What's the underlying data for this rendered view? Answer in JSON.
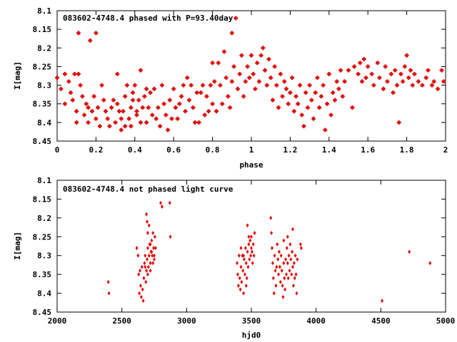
{
  "chart_data": [
    {
      "type": "scatter",
      "title": "083602-4748.4 phased with P=93.40day",
      "xlabel": "phase",
      "ylabel": "I[mag]",
      "xlim": [
        0,
        2
      ],
      "ylim": [
        8.1,
        8.45
      ],
      "y_inverted": true,
      "grid": false,
      "xticks": [
        "0",
        "0.2",
        "0.4",
        "0.6",
        "0.8",
        "1",
        "1.2",
        "1.4",
        "1.6",
        "1.8",
        "2"
      ],
      "yticks": [
        "8.1",
        "8.15",
        "8.2",
        "8.25",
        "8.3",
        "8.35",
        "8.4",
        "8.45"
      ],
      "color": "#e01010",
      "marker": "star",
      "points": [
        [
          0.0,
          8.28
        ],
        [
          0.02,
          8.31
        ],
        [
          0.04,
          8.35
        ],
        [
          0.04,
          8.27
        ],
        [
          0.06,
          8.29
        ],
        [
          0.07,
          8.32
        ],
        [
          0.08,
          8.34
        ],
        [
          0.09,
          8.27
        ],
        [
          0.1,
          8.37
        ],
        [
          0.1,
          8.4
        ],
        [
          0.11,
          8.16
        ],
        [
          0.11,
          8.27
        ],
        [
          0.12,
          8.3
        ],
        [
          0.13,
          8.33
        ],
        [
          0.14,
          8.38
        ],
        [
          0.15,
          8.35
        ],
        [
          0.16,
          8.36
        ],
        [
          0.16,
          8.4
        ],
        [
          0.17,
          8.18
        ],
        [
          0.18,
          8.37
        ],
        [
          0.19,
          8.33
        ],
        [
          0.2,
          8.16
        ],
        [
          0.2,
          8.39
        ],
        [
          0.21,
          8.36
        ],
        [
          0.22,
          8.41
        ],
        [
          0.23,
          8.3
        ],
        [
          0.24,
          8.34
        ],
        [
          0.25,
          8.37
        ],
        [
          0.26,
          8.39
        ],
        [
          0.27,
          8.41
        ],
        [
          0.28,
          8.36
        ],
        [
          0.29,
          8.34
        ],
        [
          0.3,
          8.4
        ],
        [
          0.31,
          8.27
        ],
        [
          0.31,
          8.35
        ],
        [
          0.32,
          8.37
        ],
        [
          0.33,
          8.39
        ],
        [
          0.33,
          8.42
        ],
        [
          0.34,
          8.37
        ],
        [
          0.35,
          8.33
        ],
        [
          0.35,
          8.41
        ],
        [
          0.36,
          8.3
        ],
        [
          0.37,
          8.39
        ],
        [
          0.38,
          8.36
        ],
        [
          0.38,
          8.41
        ],
        [
          0.39,
          8.34
        ],
        [
          0.39,
          8.32
        ],
        [
          0.4,
          8.3
        ],
        [
          0.41,
          8.37
        ],
        [
          0.41,
          8.38
        ],
        [
          0.42,
          8.34
        ],
        [
          0.43,
          8.26
        ],
        [
          0.43,
          8.4
        ],
        [
          0.44,
          8.36
        ],
        [
          0.45,
          8.33
        ],
        [
          0.46,
          8.31
        ],
        [
          0.46,
          8.4
        ],
        [
          0.47,
          8.36
        ],
        [
          0.48,
          8.32
        ],
        [
          0.49,
          8.38
        ],
        [
          0.5,
          8.31
        ],
        [
          0.51,
          8.39
        ],
        [
          0.52,
          8.36
        ],
        [
          0.53,
          8.41
        ],
        [
          0.54,
          8.3
        ],
        [
          0.55,
          8.35
        ],
        [
          0.56,
          8.38
        ],
        [
          0.57,
          8.42
        ],
        [
          0.58,
          8.34
        ],
        [
          0.59,
          8.39
        ],
        [
          0.6,
          8.31
        ],
        [
          0.61,
          8.36
        ],
        [
          0.62,
          8.39
        ],
        [
          0.63,
          8.35
        ],
        [
          0.64,
          8.33
        ],
        [
          0.65,
          8.3
        ],
        [
          0.66,
          8.37
        ],
        [
          0.67,
          8.28
        ],
        [
          0.68,
          8.34
        ],
        [
          0.69,
          8.3
        ],
        [
          0.7,
          8.36
        ],
        [
          0.71,
          8.4
        ],
        [
          0.72,
          8.32
        ],
        [
          0.73,
          8.4
        ],
        [
          0.74,
          8.32
        ],
        [
          0.75,
          8.3
        ],
        [
          0.76,
          8.38
        ],
        [
          0.77,
          8.33
        ],
        [
          0.78,
          8.37
        ],
        [
          0.79,
          8.3
        ],
        [
          0.8,
          8.24
        ],
        [
          0.8,
          8.35
        ],
        [
          0.81,
          8.29
        ],
        [
          0.82,
          8.37
        ],
        [
          0.83,
          8.24
        ],
        [
          0.84,
          8.3
        ],
        [
          0.85,
          8.35
        ],
        [
          0.86,
          8.21
        ],
        [
          0.87,
          8.28
        ],
        [
          0.88,
          8.33
        ],
        [
          0.89,
          8.36
        ],
        [
          0.9,
          8.16
        ],
        [
          0.9,
          8.29
        ],
        [
          0.91,
          8.25
        ],
        [
          0.92,
          8.12
        ],
        [
          0.93,
          8.31
        ],
        [
          0.94,
          8.27
        ],
        [
          0.95,
          8.22
        ],
        [
          0.96,
          8.33
        ],
        [
          0.97,
          8.29
        ],
        [
          0.98,
          8.25
        ],
        [
          0.99,
          8.28
        ],
        [
          1.0,
          8.22
        ],
        [
          1.01,
          8.27
        ],
        [
          1.02,
          8.31
        ],
        [
          1.03,
          8.24
        ],
        [
          1.04,
          8.29
        ],
        [
          1.05,
          8.22
        ],
        [
          1.06,
          8.2
        ],
        [
          1.07,
          8.26
        ],
        [
          1.08,
          8.3
        ],
        [
          1.09,
          8.23
        ],
        [
          1.1,
          8.28
        ],
        [
          1.11,
          8.34
        ],
        [
          1.12,
          8.25
        ],
        [
          1.13,
          8.3
        ],
        [
          1.14,
          8.36
        ],
        [
          1.15,
          8.27
        ],
        [
          1.16,
          8.33
        ],
        [
          1.17,
          8.29
        ],
        [
          1.18,
          8.31
        ],
        [
          1.19,
          8.35
        ],
        [
          1.2,
          8.32
        ],
        [
          1.21,
          8.28
        ],
        [
          1.22,
          8.37
        ],
        [
          1.23,
          8.33
        ],
        [
          1.24,
          8.35
        ],
        [
          1.25,
          8.3
        ],
        [
          1.26,
          8.38
        ],
        [
          1.27,
          8.41
        ],
        [
          1.28,
          8.32
        ],
        [
          1.29,
          8.36
        ],
        [
          1.3,
          8.3
        ],
        [
          1.31,
          8.34
        ],
        [
          1.32,
          8.39
        ],
        [
          1.33,
          8.32
        ],
        [
          1.34,
          8.28
        ],
        [
          1.35,
          8.36
        ],
        [
          1.36,
          8.33
        ],
        [
          1.37,
          8.3
        ],
        [
          1.38,
          8.42
        ],
        [
          1.39,
          8.35
        ],
        [
          1.4,
          8.27
        ],
        [
          1.41,
          8.38
        ],
        [
          1.42,
          8.32
        ],
        [
          1.43,
          8.34
        ],
        [
          1.44,
          8.29
        ],
        [
          1.45,
          8.31
        ],
        [
          1.46,
          8.26
        ],
        [
          1.47,
          8.33
        ],
        [
          1.48,
          8.29
        ],
        [
          1.5,
          8.26
        ],
        [
          1.52,
          8.36
        ],
        [
          1.53,
          8.25
        ],
        [
          1.55,
          8.27
        ],
        [
          1.56,
          8.24
        ],
        [
          1.57,
          8.29
        ],
        [
          1.58,
          8.23
        ],
        [
          1.59,
          8.28
        ],
        [
          1.6,
          8.25
        ],
        [
          1.62,
          8.27
        ],
        [
          1.63,
          8.3
        ],
        [
          1.65,
          8.24
        ],
        [
          1.66,
          8.28
        ],
        [
          1.68,
          8.31
        ],
        [
          1.69,
          8.25
        ],
        [
          1.7,
          8.29
        ],
        [
          1.72,
          8.27
        ],
        [
          1.73,
          8.32
        ],
        [
          1.74,
          8.26
        ],
        [
          1.75,
          8.3
        ],
        [
          1.76,
          8.4
        ],
        [
          1.77,
          8.27
        ],
        [
          1.78,
          8.29
        ],
        [
          1.79,
          8.25
        ],
        [
          1.8,
          8.22
        ],
        [
          1.81,
          8.28
        ],
        [
          1.82,
          8.26
        ],
        [
          1.83,
          8.3
        ],
        [
          1.84,
          8.27
        ],
        [
          1.86,
          8.29
        ],
        [
          1.88,
          8.3
        ],
        [
          1.9,
          8.28
        ],
        [
          1.91,
          8.26
        ],
        [
          1.93,
          8.3
        ],
        [
          1.94,
          8.29
        ],
        [
          1.96,
          8.31
        ],
        [
          1.98,
          8.26
        ],
        [
          1.99,
          8.29
        ]
      ]
    },
    {
      "type": "scatter",
      "title": "083602-4748.4 not phased light curve",
      "xlabel": "hjd0",
      "ylabel": "I[mag]",
      "xlim": [
        2000,
        5000
      ],
      "ylim": [
        8.1,
        8.45
      ],
      "y_inverted": true,
      "grid": false,
      "xticks": [
        "2000",
        "2500",
        "3000",
        "3500",
        "4000",
        "4500",
        "5000"
      ],
      "yticks": [
        "8.1",
        "8.15",
        "8.2",
        "8.25",
        "8.3",
        "8.35",
        "8.4",
        "8.45"
      ],
      "color": "#e01010",
      "marker": "diamond",
      "points": [
        [
          2395,
          8.37
        ],
        [
          2400,
          8.4
        ],
        [
          2615,
          8.28
        ],
        [
          2625,
          8.3
        ],
        [
          2630,
          8.35
        ],
        [
          2635,
          8.4
        ],
        [
          2640,
          8.34
        ],
        [
          2645,
          8.38
        ],
        [
          2650,
          8.41
        ],
        [
          2655,
          8.33
        ],
        [
          2660,
          8.39
        ],
        [
          2665,
          8.42
        ],
        [
          2670,
          8.36
        ],
        [
          2675,
          8.32
        ],
        [
          2680,
          8.3
        ],
        [
          2685,
          8.37
        ],
        [
          2690,
          8.34
        ],
        [
          2695,
          8.31
        ],
        [
          2700,
          8.28
        ],
        [
          2705,
          8.33
        ],
        [
          2710,
          8.3
        ],
        [
          2715,
          8.27
        ],
        [
          2720,
          8.32
        ],
        [
          2725,
          8.29
        ],
        [
          2730,
          8.26
        ],
        [
          2735,
          8.3
        ],
        [
          2740,
          8.24
        ],
        [
          2745,
          8.28
        ],
        [
          2750,
          8.31
        ],
        [
          2755,
          8.25
        ],
        [
          2690,
          8.19
        ],
        [
          2695,
          8.21
        ],
        [
          2700,
          8.24
        ],
        [
          2710,
          8.22
        ],
        [
          2720,
          8.27
        ],
        [
          2730,
          8.29
        ],
        [
          2740,
          8.32
        ],
        [
          2750,
          8.3
        ],
        [
          2760,
          8.28
        ],
        [
          2680,
          8.33
        ],
        [
          2700,
          8.35
        ],
        [
          2720,
          8.34
        ],
        [
          2800,
          8.16
        ],
        [
          2810,
          8.17
        ],
        [
          2870,
          8.16
        ],
        [
          2875,
          8.25
        ],
        [
          3390,
          8.32
        ],
        [
          3395,
          8.35
        ],
        [
          3400,
          8.38
        ],
        [
          3405,
          8.3
        ],
        [
          3410,
          8.36
        ],
        [
          3415,
          8.39
        ],
        [
          3420,
          8.33
        ],
        [
          3425,
          8.37
        ],
        [
          3430,
          8.3
        ],
        [
          3435,
          8.34
        ],
        [
          3440,
          8.4
        ],
        [
          3445,
          8.31
        ],
        [
          3450,
          8.35
        ],
        [
          3455,
          8.28
        ],
        [
          3460,
          8.32
        ],
        [
          3465,
          8.36
        ],
        [
          3470,
          8.29
        ],
        [
          3475,
          8.33
        ],
        [
          3480,
          8.27
        ],
        [
          3485,
          8.31
        ],
        [
          3490,
          8.26
        ],
        [
          3495,
          8.3
        ],
        [
          3500,
          8.25
        ],
        [
          3505,
          8.29
        ],
        [
          3510,
          8.32
        ],
        [
          3515,
          8.27
        ],
        [
          3520,
          8.3
        ],
        [
          3525,
          8.24
        ],
        [
          3470,
          8.22
        ],
        [
          3480,
          8.25
        ],
        [
          3500,
          8.28
        ],
        [
          3420,
          8.28
        ],
        [
          3440,
          8.3
        ],
        [
          3460,
          8.38
        ],
        [
          3650,
          8.2
        ],
        [
          3655,
          8.24
        ],
        [
          3660,
          8.28
        ],
        [
          3665,
          8.32
        ],
        [
          3670,
          8.36
        ],
        [
          3675,
          8.4
        ],
        [
          3680,
          8.3
        ],
        [
          3685,
          8.34
        ],
        [
          3690,
          8.38
        ],
        [
          3695,
          8.33
        ],
        [
          3700,
          8.27
        ],
        [
          3705,
          8.31
        ],
        [
          3710,
          8.35
        ],
        [
          3715,
          8.29
        ],
        [
          3720,
          8.33
        ],
        [
          3725,
          8.37
        ],
        [
          3730,
          8.3
        ],
        [
          3735,
          8.34
        ],
        [
          3740,
          8.38
        ],
        [
          3745,
          8.41
        ],
        [
          3750,
          8.32
        ],
        [
          3755,
          8.36
        ],
        [
          3760,
          8.39
        ],
        [
          3765,
          8.31
        ],
        [
          3770,
          8.35
        ],
        [
          3775,
          8.28
        ],
        [
          3780,
          8.32
        ],
        [
          3785,
          8.36
        ],
        [
          3790,
          8.3
        ],
        [
          3795,
          8.34
        ],
        [
          3800,
          8.27
        ],
        [
          3805,
          8.31
        ],
        [
          3810,
          8.35
        ],
        [
          3815,
          8.29
        ],
        [
          3820,
          8.33
        ],
        [
          3825,
          8.38
        ],
        [
          3830,
          8.32
        ],
        [
          3835,
          8.36
        ],
        [
          3840,
          8.3
        ],
        [
          3845,
          8.35
        ],
        [
          3850,
          8.4
        ],
        [
          3855,
          8.31
        ],
        [
          3880,
          8.27
        ],
        [
          3885,
          8.28
        ],
        [
          3750,
          8.26
        ],
        [
          3780,
          8.25
        ],
        [
          3820,
          8.23
        ],
        [
          4510,
          8.42
        ],
        [
          4720,
          8.29
        ],
        [
          4880,
          8.32
        ]
      ]
    }
  ]
}
